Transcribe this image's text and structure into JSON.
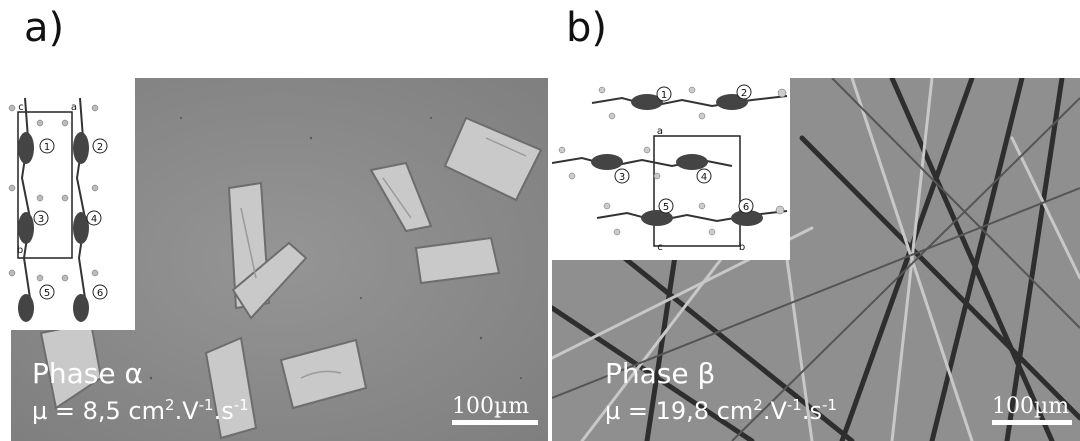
{
  "panels": [
    {
      "letter": "a)",
      "phase": "Phase α",
      "mobility_prefix": "µ = 8,5 cm",
      "mobility_exp1": "2",
      "mobility_mid": ".V",
      "mobility_exp2": "-1",
      "mobility_mid2": ".s",
      "mobility_exp3": "-1",
      "scale": "100µm",
      "inset_labels": [
        "c",
        "a",
        "b",
        "1",
        "2",
        "3",
        "4",
        "5",
        "6"
      ]
    },
    {
      "letter": "b)",
      "phase": "Phase β",
      "mobility_prefix": "µ = 19,8 cm",
      "mobility_exp1": "2",
      "mobility_mid": ".V",
      "mobility_exp2": "-1",
      "mobility_mid2": ".s",
      "mobility_exp3": "-1",
      "scale": "100µm",
      "inset_labels": [
        "a",
        "c",
        "b",
        "1",
        "2",
        "3",
        "4",
        "5",
        "6"
      ]
    }
  ]
}
